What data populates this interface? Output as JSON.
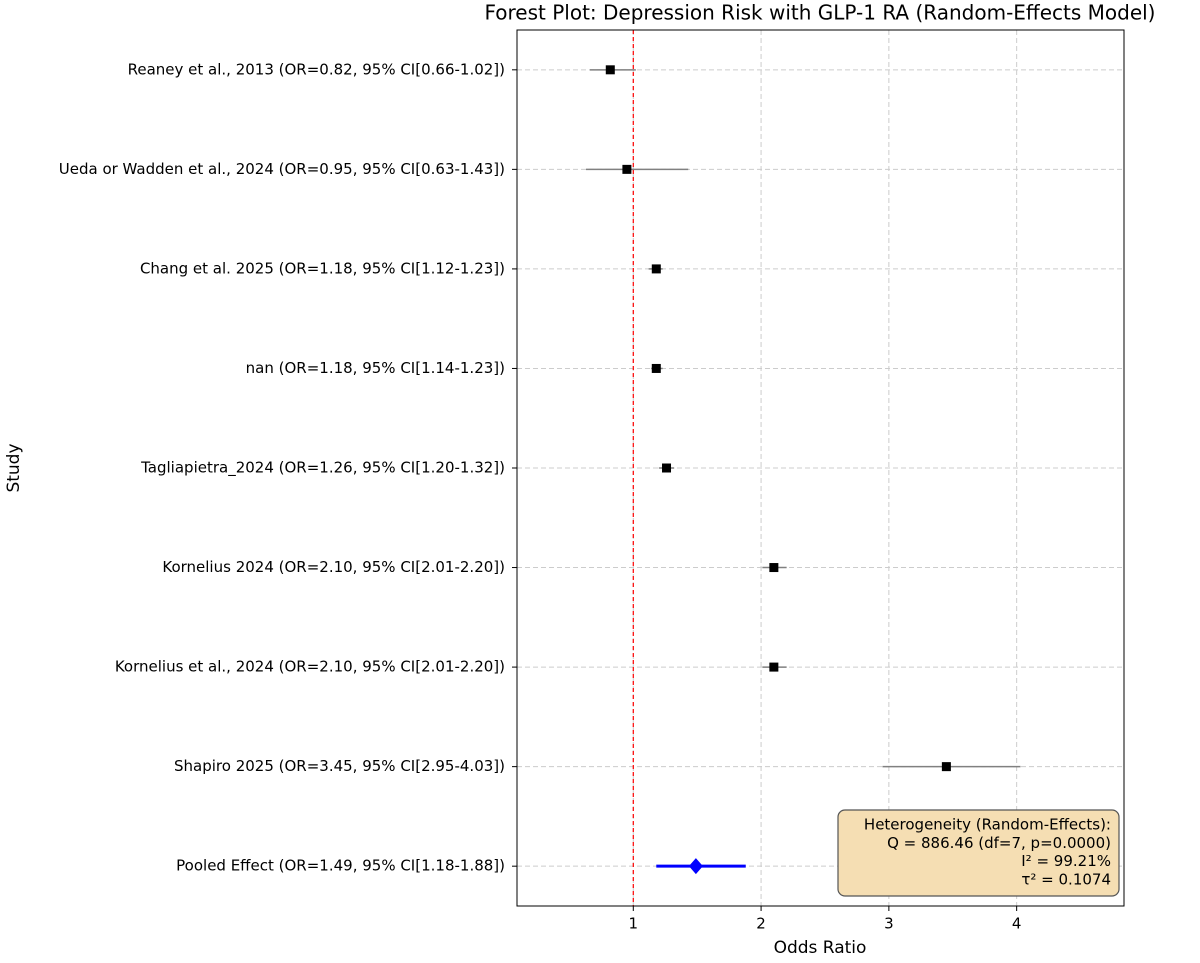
{
  "chart_data": {
    "type": "forest",
    "title": "Forest Plot: Depression Risk with GLP-1 RA (Random-Effects Model)",
    "xlabel": "Odds Ratio",
    "ylabel": "Study",
    "categories": [
      "Reaney et al., 2013 (OR=0.82, 95% CI[0.66-1.02])",
      "Ueda or Wadden et al., 2024 (OR=0.95, 95% CI[0.63-1.43])",
      "Chang et al. 2025 (OR=1.18, 95% CI[1.12-1.23])",
      "nan (OR=1.18, 95% CI[1.14-1.23])",
      "Tagliapietra_2024 (OR=1.26, 95% CI[1.20-1.32])",
      "Kornelius 2024 (OR=2.10, 95% CI[2.01-2.20])",
      "Kornelius et al., 2024 (OR=2.10, 95% CI[2.01-2.20])",
      "Shapiro 2025 (OR=3.45, 95% CI[2.95-4.03])"
    ],
    "values": [
      0.82,
      0.95,
      1.18,
      1.18,
      1.26,
      2.1,
      2.1,
      3.45
    ],
    "ci_lower": [
      0.66,
      0.63,
      1.12,
      1.14,
      1.2,
      2.01,
      2.01,
      2.95
    ],
    "ci_upper": [
      1.02,
      1.43,
      1.23,
      1.23,
      1.32,
      2.2,
      2.2,
      4.03
    ],
    "color": "#000000",
    "ci_color": "#808080",
    "pooled": {
      "label": "Pooled Effect (OR=1.49, 95% CI[1.18-1.88])",
      "value": 1.49,
      "ci_lower": 1.18,
      "ci_upper": 1.88,
      "color": "#0000ff"
    },
    "reference_line": 1,
    "reference_color": "#ff0000",
    "xlim": [
      0.09,
      4.84
    ],
    "xticks": [
      1,
      2,
      3,
      4
    ],
    "grid": true,
    "annotation": [
      "Heterogeneity (Random-Effects):",
      "Q = 886.46 (df=7, p=0.0000)",
      "I² = 99.21%",
      "τ² = 0.1074"
    ]
  }
}
